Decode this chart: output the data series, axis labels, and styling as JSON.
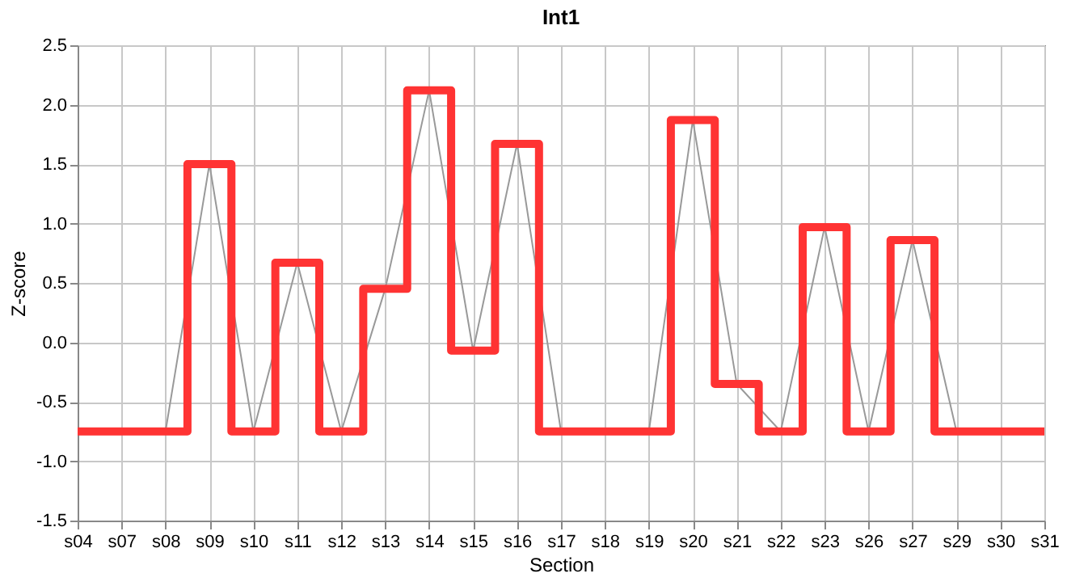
{
  "chart_data": {
    "type": "step",
    "title": "Int1",
    "xlabel": "Section",
    "ylabel": "Z-score",
    "categories": [
      "s04",
      "s07",
      "s08",
      "s09",
      "s10",
      "s11",
      "s12",
      "s13",
      "s14",
      "s15",
      "s16",
      "s17",
      "s18",
      "s19",
      "s20",
      "s21",
      "s22",
      "s23",
      "s26",
      "s27",
      "s29",
      "s30",
      "s31"
    ],
    "series": [
      {
        "color": "#ff3333",
        "values": [
          -0.75,
          -0.75,
          -0.75,
          1.5,
          -0.75,
          0.67,
          -0.75,
          0.45,
          2.12,
          -0.07,
          1.67,
          -0.75,
          -0.75,
          -0.75,
          1.87,
          -0.35,
          -0.75,
          0.97,
          -0.75,
          0.86,
          -0.75,
          -0.75,
          -0.75
        ]
      },
      {
        "type": "line",
        "color": "#999999",
        "values": [
          -0.75,
          -0.75,
          -0.75,
          1.5,
          -0.75,
          0.67,
          -0.75,
          0.45,
          2.12,
          -0.07,
          1.67,
          -0.75,
          -0.75,
          -0.75,
          1.87,
          -0.35,
          -0.75,
          0.97,
          -0.75,
          0.86,
          -0.75,
          -0.75,
          -0.75
        ]
      }
    ],
    "ylim": [
      -1.5,
      2.5
    ],
    "yticks": [
      -1.5,
      {
        "value": -1.0,
        "label": "-1.0"
      },
      -0.5,
      {
        "value": 0,
        "label": "0.0"
      },
      0.5,
      {
        "value": 1.0,
        "label": "1.0"
      },
      1.5,
      {
        "value": 2.0,
        "label": "2.0"
      },
      2.5
    ],
    "grid": true,
    "marker": "none",
    "line_style": "solid"
  }
}
